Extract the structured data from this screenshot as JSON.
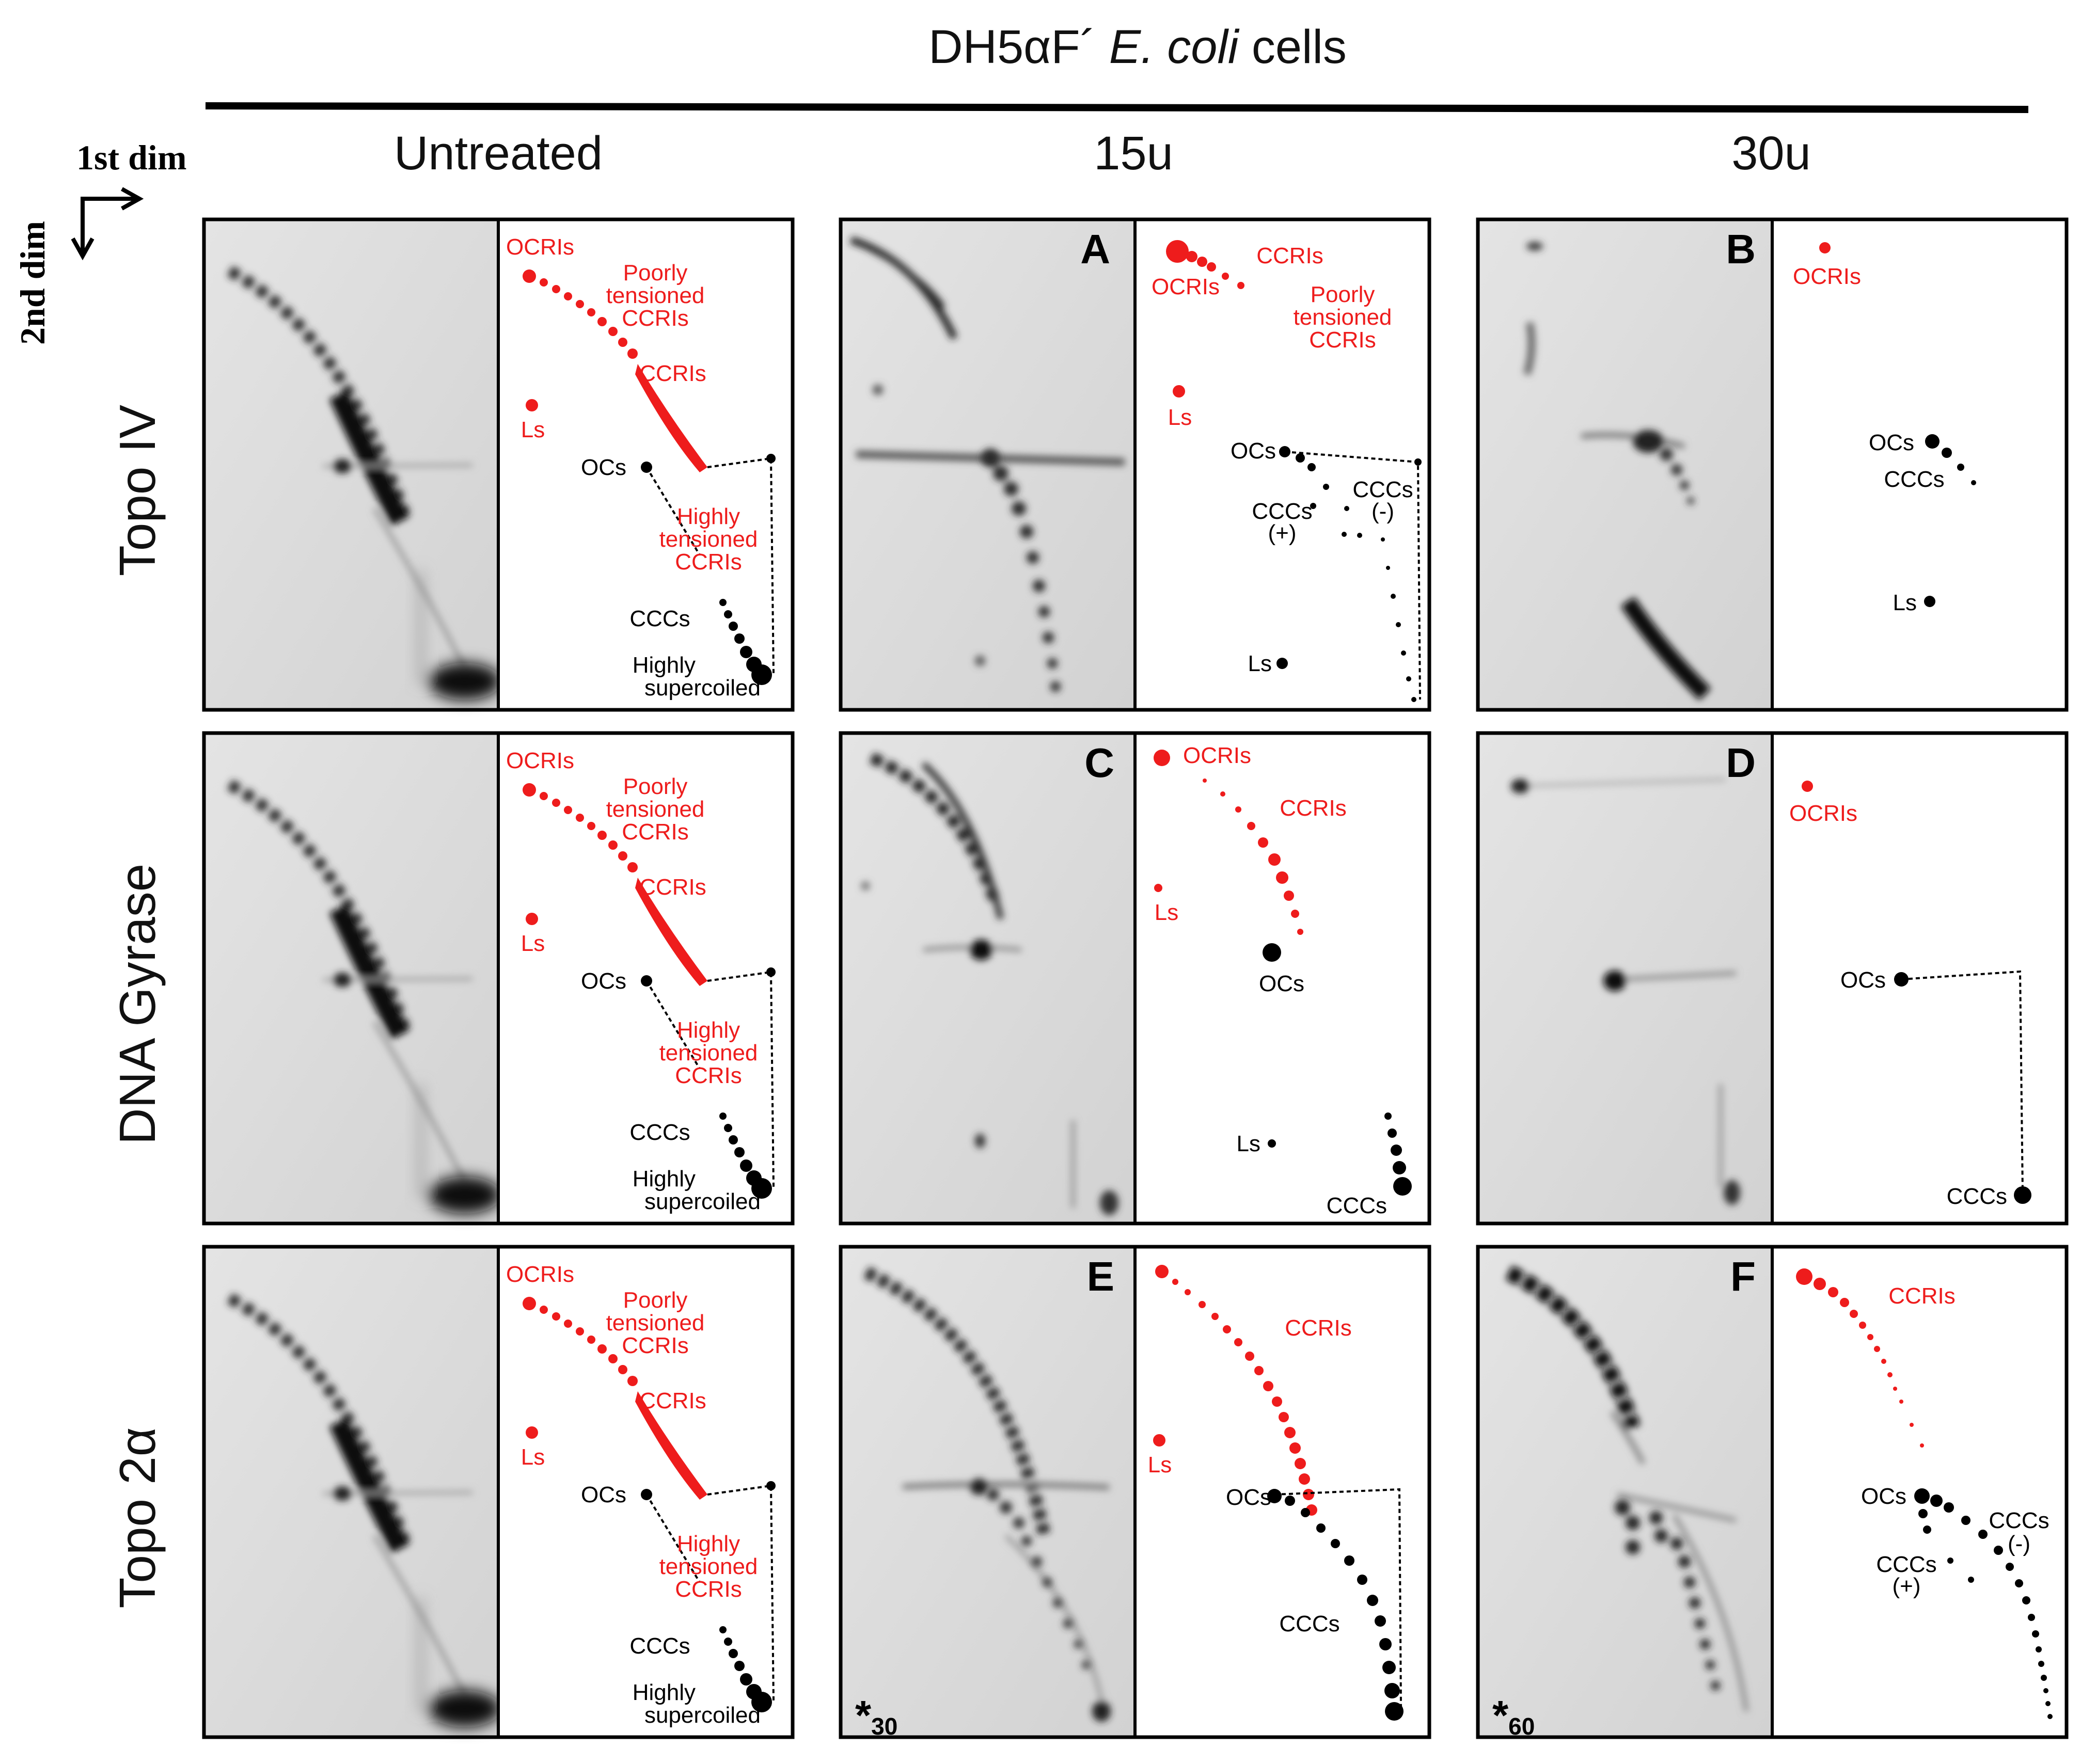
{
  "title": {
    "prefix": "DH5αF´ ",
    "species": "E. coli",
    "suffix": " cells"
  },
  "axes": {
    "first": "1st dim",
    "second": "2nd dim"
  },
  "columns": [
    "Untreated",
    "15u",
    "30u"
  ],
  "rows": [
    "Topo IV",
    "DNA Gyrase",
    "Topo 2α"
  ],
  "panel_letters": [
    "A",
    "B",
    "C",
    "D",
    "E",
    "F"
  ],
  "markers": [
    {
      "symbol": "*",
      "sub": "30"
    },
    {
      "symbol": "*",
      "sub": "60"
    }
  ],
  "labels": {
    "ocris": "OCRIs",
    "ccris": "CCRIs",
    "poorly": [
      "Poorly",
      "tensioned",
      "CCRIs"
    ],
    "highly_t": [
      "Highly",
      "tensioned",
      "CCRIs"
    ],
    "ls": "Ls",
    "ocs": "OCs",
    "cccs": "CCCs",
    "cccs_plus": [
      "CCCs",
      "(+)"
    ],
    "cccs_minus": [
      "CCCs",
      "(-)"
    ],
    "highly_sc": [
      "Highly",
      "supercoiled"
    ]
  },
  "colors": {
    "red": "#ee1c1c",
    "black": "#000000",
    "gel": "#dcdcdc",
    "band": "#1a1a1a"
  }
}
